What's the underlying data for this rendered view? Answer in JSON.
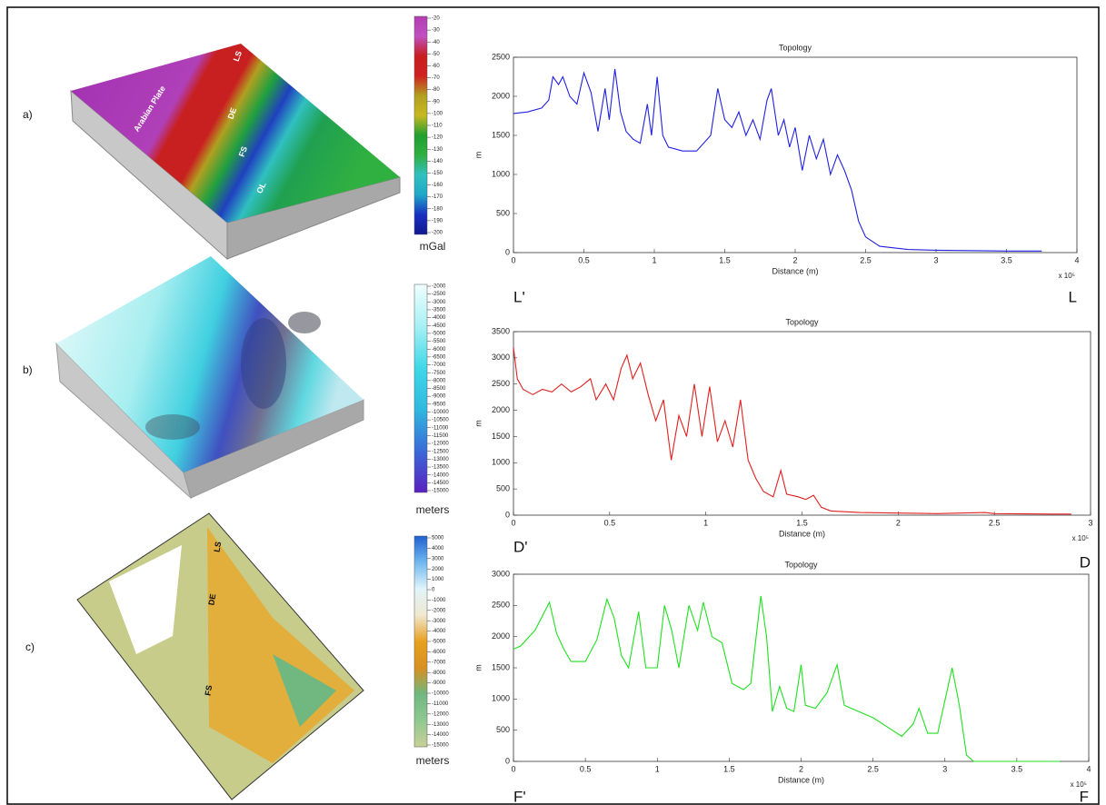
{
  "panels": [
    {
      "label": "a)",
      "annotations": [
        "Arabian Plate",
        "LS",
        "DE",
        "FS",
        "OL"
      ]
    },
    {
      "label": "b)",
      "annotations": []
    },
    {
      "label": "c)",
      "annotations": [
        "LS",
        "DE",
        "FS"
      ]
    }
  ],
  "colorbars": [
    {
      "label": "mGal",
      "ticks": [
        -20,
        -30,
        -40,
        -50,
        -60,
        -70,
        -80,
        -90,
        -100,
        -110,
        -120,
        -130,
        -140,
        -150,
        -160,
        -170,
        -180,
        -190,
        -200
      ],
      "colors": [
        "#b43cb4",
        "#c050c0",
        "#c81e1e",
        "#d02020",
        "#b0a020",
        "#c8b820",
        "#20a030",
        "#30b040",
        "#30c0c0",
        "#20a8c8",
        "#1830c0",
        "#101890"
      ]
    },
    {
      "label": "meters",
      "ticks": [
        -2000,
        -2500,
        -3000,
        -3500,
        -4000,
        -4500,
        -5000,
        -5500,
        -6000,
        -6500,
        -7000,
        -7500,
        -8000,
        -8500,
        -9000,
        -9500,
        -10000,
        -10500,
        -11000,
        -11500,
        -12000,
        -12500,
        -13000,
        -13500,
        -14000,
        -14500,
        -15000
      ],
      "colors": [
        "#f0ffff",
        "#a8f0f4",
        "#40d8e8",
        "#30b8e0",
        "#3a6ad8",
        "#5a20c0"
      ]
    },
    {
      "label": "meters",
      "ticks": [
        5000,
        4000,
        3000,
        2000,
        1000,
        0,
        -1000,
        -2000,
        -3000,
        -4000,
        -5000,
        -6000,
        -7000,
        -8000,
        -9000,
        -10000,
        -11000,
        -12000,
        -13000,
        -14000,
        -15000
      ],
      "colors": [
        "#2060d0",
        "#70b8f0",
        "#e0f4fa",
        "#f0e8d0",
        "#e8a020",
        "#d89020",
        "#70b880",
        "#90c890",
        "#c8d098"
      ]
    }
  ],
  "chart_data": [
    {
      "type": "line",
      "title": "Topology",
      "xlabel": "Distance  (m)",
      "ylabel": "m",
      "x_exponent_label": "x 10⁵",
      "start_label": "L'",
      "end_label": "L",
      "color": "#2020e0",
      "xlim": [
        0,
        4
      ],
      "xticks": [
        0,
        0.5,
        1,
        1.5,
        2,
        2.5,
        3,
        3.5,
        4
      ],
      "ylim": [
        0,
        2500
      ],
      "yticks": [
        0,
        500,
        1000,
        1500,
        2000,
        2500
      ],
      "x": [
        0,
        0.1,
        0.2,
        0.25,
        0.28,
        0.32,
        0.35,
        0.4,
        0.45,
        0.5,
        0.55,
        0.6,
        0.65,
        0.68,
        0.72,
        0.76,
        0.8,
        0.85,
        0.9,
        0.95,
        0.98,
        1.02,
        1.06,
        1.1,
        1.2,
        1.3,
        1.4,
        1.45,
        1.5,
        1.55,
        1.6,
        1.65,
        1.7,
        1.75,
        1.8,
        1.83,
        1.88,
        1.92,
        1.96,
        2.0,
        2.05,
        2.1,
        2.15,
        2.2,
        2.25,
        2.3,
        2.35,
        2.4,
        2.45,
        2.5,
        2.6,
        2.8,
        3.0,
        3.3,
        3.5,
        3.75
      ],
      "values": [
        1780,
        1800,
        1850,
        1950,
        2250,
        2150,
        2250,
        2000,
        1900,
        2300,
        2050,
        1550,
        2100,
        1700,
        2350,
        1800,
        1550,
        1450,
        1400,
        1900,
        1500,
        2250,
        1500,
        1350,
        1300,
        1300,
        1500,
        2100,
        1700,
        1600,
        1800,
        1500,
        1700,
        1450,
        1950,
        2100,
        1500,
        1700,
        1350,
        1600,
        1050,
        1500,
        1200,
        1450,
        1000,
        1250,
        1050,
        800,
        400,
        200,
        80,
        40,
        30,
        25,
        20,
        20
      ]
    },
    {
      "type": "line",
      "title": "Topology",
      "xlabel": "Distance  (m)",
      "ylabel": "m",
      "x_exponent_label": "x 10⁵",
      "start_label": "D'",
      "end_label": "D",
      "color": "#e02020",
      "xlim": [
        0,
        3
      ],
      "xticks": [
        0,
        0.5,
        1,
        1.5,
        2,
        2.5,
        3
      ],
      "ylim": [
        0,
        3500
      ],
      "yticks": [
        0,
        500,
        1000,
        1500,
        2000,
        2500,
        3000,
        3500
      ],
      "x": [
        0,
        0.02,
        0.05,
        0.1,
        0.15,
        0.2,
        0.25,
        0.3,
        0.35,
        0.4,
        0.43,
        0.48,
        0.52,
        0.56,
        0.59,
        0.62,
        0.66,
        0.7,
        0.74,
        0.78,
        0.82,
        0.86,
        0.9,
        0.94,
        0.98,
        1.02,
        1.06,
        1.1,
        1.14,
        1.18,
        1.22,
        1.26,
        1.3,
        1.35,
        1.39,
        1.42,
        1.48,
        1.52,
        1.56,
        1.6,
        1.65,
        1.8,
        2.0,
        2.2,
        2.45,
        2.5,
        2.8,
        2.9
      ],
      "values": [
        3200,
        2600,
        2400,
        2300,
        2400,
        2350,
        2500,
        2350,
        2450,
        2600,
        2200,
        2500,
        2200,
        2800,
        3050,
        2600,
        2900,
        2300,
        1800,
        2200,
        1050,
        1900,
        1500,
        2500,
        1500,
        2450,
        1400,
        1800,
        1300,
        2200,
        1050,
        700,
        450,
        350,
        850,
        400,
        350,
        300,
        380,
        150,
        80,
        50,
        40,
        30,
        50,
        30,
        20,
        20
      ]
    },
    {
      "type": "line",
      "title": "Topology",
      "xlabel": "Distance  (m)",
      "ylabel": "m",
      "x_exponent_label": "x 10⁵",
      "start_label": "F'",
      "end_label": "F",
      "color": "#20e020",
      "xlim": [
        0,
        4
      ],
      "xticks": [
        0,
        0.5,
        1,
        1.5,
        2,
        2.5,
        3,
        3.5,
        4
      ],
      "ylim": [
        0,
        3000
      ],
      "yticks": [
        0,
        500,
        1000,
        1500,
        2000,
        2500,
        3000
      ],
      "x": [
        0,
        0.05,
        0.15,
        0.25,
        0.3,
        0.35,
        0.4,
        0.5,
        0.58,
        0.65,
        0.7,
        0.75,
        0.8,
        0.87,
        0.92,
        1.0,
        1.05,
        1.1,
        1.15,
        1.22,
        1.28,
        1.32,
        1.38,
        1.45,
        1.52,
        1.6,
        1.65,
        1.72,
        1.76,
        1.8,
        1.85,
        1.9,
        1.95,
        2.0,
        2.03,
        2.1,
        2.18,
        2.25,
        2.3,
        2.4,
        2.5,
        2.6,
        2.7,
        2.78,
        2.82,
        2.88,
        2.95,
        3.05,
        3.1,
        3.15,
        3.2,
        3.5,
        3.8
      ],
      "values": [
        1800,
        1850,
        2100,
        2550,
        2050,
        1800,
        1600,
        1600,
        1950,
        2600,
        2300,
        1700,
        1500,
        2400,
        1500,
        1500,
        2500,
        2100,
        1500,
        2500,
        2100,
        2550,
        2000,
        1900,
        1250,
        1150,
        1250,
        2650,
        2000,
        800,
        1200,
        850,
        800,
        1550,
        900,
        850,
        1100,
        1550,
        900,
        800,
        700,
        550,
        400,
        600,
        850,
        450,
        450,
        1500,
        900,
        100,
        0,
        0,
        0
      ]
    }
  ]
}
